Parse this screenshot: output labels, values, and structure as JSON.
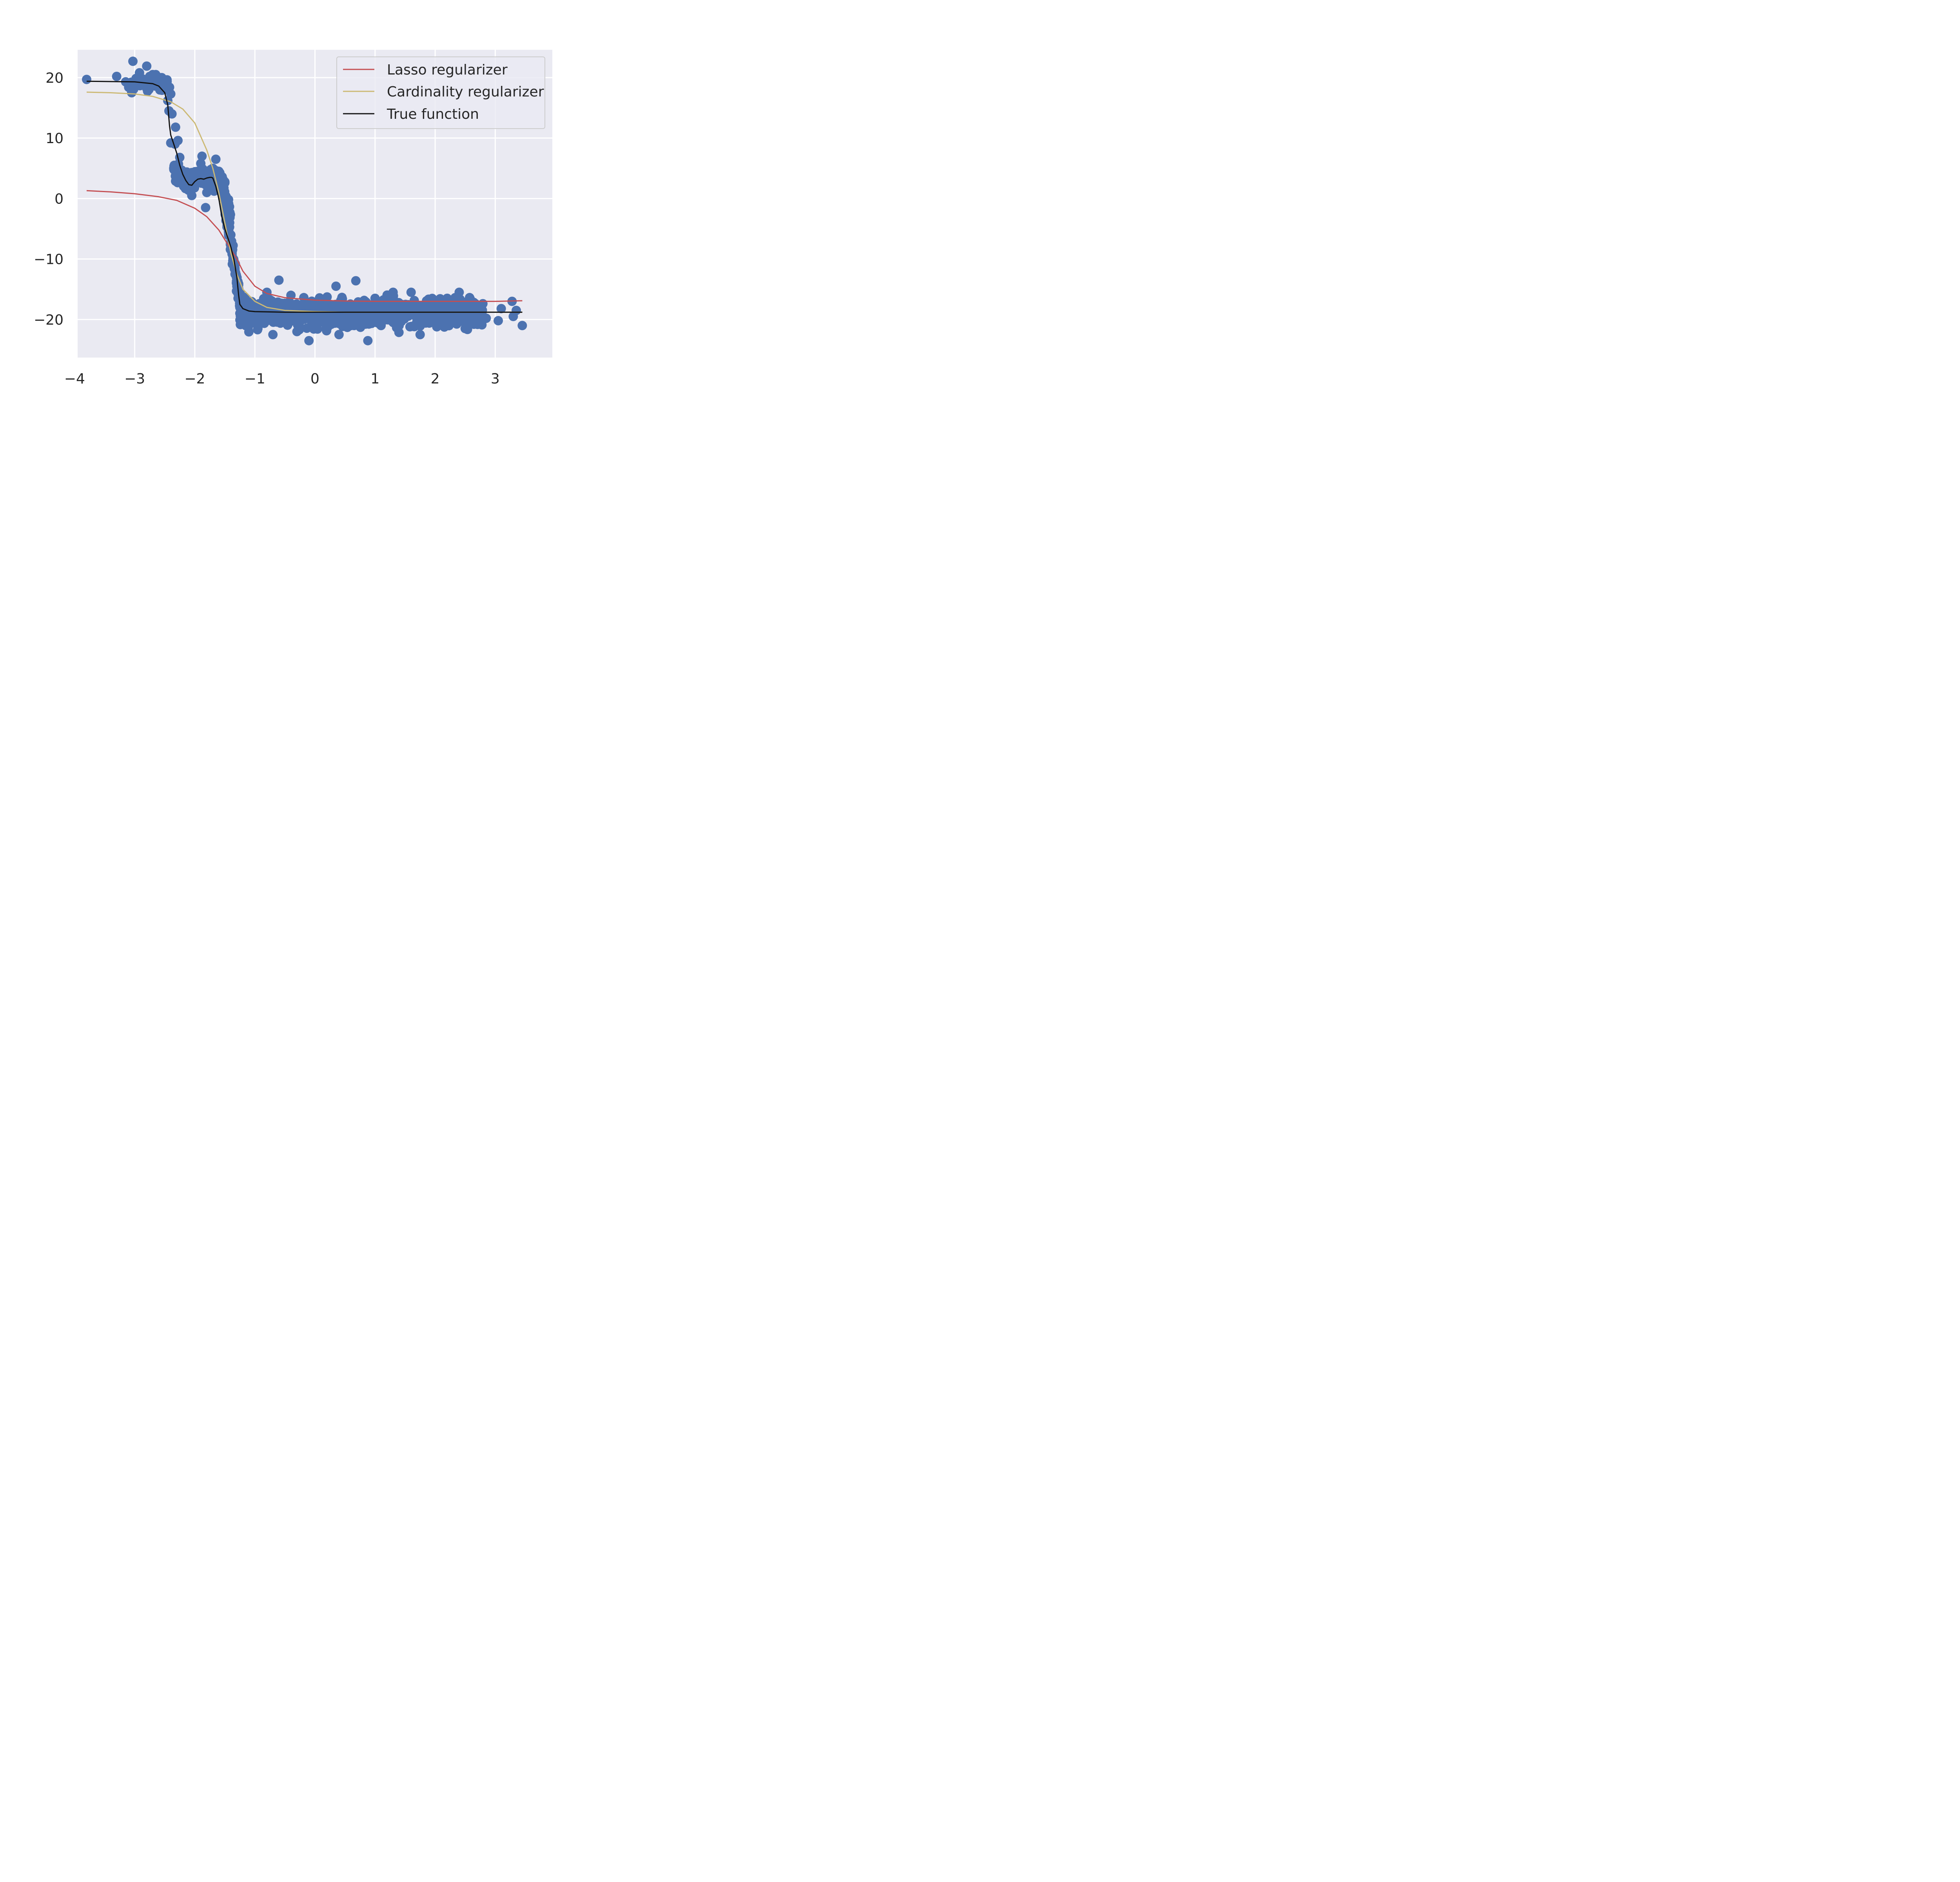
{
  "chart_data": {
    "type": "scatter",
    "title": "",
    "xlabel": "",
    "ylabel": "",
    "xlim": [
      -3.95,
      3.95
    ],
    "ylim": [
      -26.3,
      24.6
    ],
    "xticks": [
      -4,
      -3,
      -2,
      -1,
      0,
      1,
      2,
      3
    ],
    "xtick_labels": [
      "−4",
      "−3",
      "−2",
      "−1",
      "0",
      "1",
      "2",
      "3"
    ],
    "yticks": [
      -20,
      -10,
      0,
      10,
      20
    ],
    "ytick_labels": [
      "−20",
      "−10",
      "0",
      "10",
      "20"
    ],
    "grid": true,
    "legend_position": "top-right",
    "colors": {
      "background": "#EAEAF2",
      "grid": "#FFFFFF",
      "points": "#4C72B0",
      "lasso": "#C44E52",
      "cardinality": "#CCB974",
      "true": "#111111",
      "text": "#262626"
    },
    "scatter_points": [
      [
        -3.8,
        19.7
      ],
      [
        -3.3,
        20.2
      ],
      [
        -3.15,
        19.3
      ],
      [
        -3.03,
        22.7
      ],
      [
        -3.05,
        17.5
      ],
      [
        -3.1,
        18.4
      ],
      [
        -2.98,
        19.6
      ],
      [
        -2.92,
        20.8
      ],
      [
        -2.85,
        19.3
      ],
      [
        -2.8,
        21.9
      ],
      [
        -2.75,
        20.2
      ],
      [
        -2.7,
        20.5
      ],
      [
        -2.65,
        20.5
      ],
      [
        -2.62,
        19.0
      ],
      [
        -2.58,
        18.5
      ],
      [
        -2.55,
        20.0
      ],
      [
        -2.48,
        19.5
      ],
      [
        -2.42,
        18.4
      ],
      [
        -2.4,
        17.3
      ],
      [
        -2.45,
        16.2
      ],
      [
        -2.43,
        14.5
      ],
      [
        -2.38,
        14.0
      ],
      [
        -2.32,
        11.8
      ],
      [
        -2.4,
        9.2
      ],
      [
        -2.33,
        9.0
      ],
      [
        -2.28,
        9.6
      ],
      [
        -2.25,
        6.8
      ],
      [
        -2.35,
        5.0
      ],
      [
        -2.2,
        4.5
      ],
      [
        -2.15,
        3.5
      ],
      [
        -2.1,
        2.0
      ],
      [
        -2.05,
        0.5
      ],
      [
        -2.0,
        3.0
      ],
      [
        -1.95,
        4.5
      ],
      [
        -1.9,
        5.8
      ],
      [
        -1.88,
        7.0
      ],
      [
        -1.85,
        3.5
      ],
      [
        -1.8,
        1.0
      ],
      [
        -1.82,
        -1.5
      ],
      [
        -1.75,
        4.0
      ],
      [
        -1.7,
        5.0
      ],
      [
        -1.65,
        6.5
      ],
      [
        -1.6,
        4.5
      ],
      [
        -1.55,
        2.0
      ],
      [
        -1.5,
        0.0
      ],
      [
        -1.47,
        -2.5
      ],
      [
        -1.42,
        -4.0
      ],
      [
        -1.4,
        -6.0
      ],
      [
        -1.38,
        -8.0
      ],
      [
        -1.35,
        -10.5
      ],
      [
        -1.33,
        -12.5
      ],
      [
        -1.3,
        -14.5
      ],
      [
        -1.28,
        -16.5
      ],
      [
        -1.25,
        -18.0
      ],
      [
        -1.2,
        -20.0
      ],
      [
        -1.15,
        -21.0
      ],
      [
        -1.05,
        -20.5
      ],
      [
        -0.95,
        -21.5
      ],
      [
        -0.85,
        -19.5
      ],
      [
        -0.8,
        -15.5
      ],
      [
        -0.7,
        -22.5
      ],
      [
        -0.6,
        -13.5
      ],
      [
        -0.5,
        -20.5
      ],
      [
        -0.4,
        -16.0
      ],
      [
        -0.3,
        -22.0
      ],
      [
        -0.1,
        -23.5
      ],
      [
        0.0,
        -20.0
      ],
      [
        0.1,
        -17.0
      ],
      [
        0.2,
        -20.5
      ],
      [
        0.35,
        -14.5
      ],
      [
        0.4,
        -22.5
      ],
      [
        0.5,
        -18.0
      ],
      [
        0.6,
        -21.0
      ],
      [
        0.68,
        -13.6
      ],
      [
        0.8,
        -20.0
      ],
      [
        0.88,
        -23.5
      ],
      [
        1.0,
        -16.5
      ],
      [
        1.1,
        -21.0
      ],
      [
        1.2,
        -19.0
      ],
      [
        1.3,
        -15.5
      ],
      [
        1.4,
        -21.0
      ],
      [
        1.5,
        -19.5
      ],
      [
        1.6,
        -15.5
      ],
      [
        1.75,
        -22.5
      ],
      [
        1.85,
        -17.5
      ],
      [
        2.0,
        -20.5
      ],
      [
        2.1,
        -18.5
      ],
      [
        2.2,
        -16.5
      ],
      [
        2.3,
        -19.5
      ],
      [
        2.4,
        -15.5
      ],
      [
        2.5,
        -21.5
      ],
      [
        2.58,
        -17.8
      ],
      [
        2.7,
        -20.5
      ],
      [
        2.85,
        -19.8
      ],
      [
        3.05,
        -20.2
      ],
      [
        3.1,
        -18.2
      ],
      [
        3.28,
        -17.0
      ],
      [
        3.3,
        -19.5
      ],
      [
        3.35,
        -18.5
      ],
      [
        3.45,
        -21.0
      ]
    ],
    "dense_band": {
      "x_range": [
        -1.25,
        2.8
      ],
      "y_center": -19.0,
      "y_spread": 2.8,
      "upper_y_edge": -15.5,
      "lower_y_edge": -22.5
    },
    "series": [
      {
        "name": "Lasso regularizer",
        "x": [
          -3.8,
          -3.4,
          -3.0,
          -2.6,
          -2.3,
          -2.0,
          -1.8,
          -1.6,
          -1.5,
          -1.4,
          -1.3,
          -1.2,
          -1.0,
          -0.8,
          -0.5,
          0.0,
          0.5,
          1.0,
          1.5,
          2.0,
          2.5,
          3.0,
          3.45
        ],
        "y": [
          1.3,
          1.1,
          0.8,
          0.3,
          -0.3,
          -1.6,
          -3.0,
          -5.2,
          -6.8,
          -8.4,
          -10.0,
          -12.0,
          -14.5,
          -15.7,
          -16.4,
          -16.8,
          -16.95,
          -17.0,
          -17.0,
          -17.0,
          -17.0,
          -17.0,
          -16.9
        ]
      },
      {
        "name": "Cardinality regularizer",
        "x": [
          -3.8,
          -3.4,
          -3.0,
          -2.7,
          -2.4,
          -2.2,
          -2.0,
          -1.8,
          -1.7,
          -1.6,
          -1.5,
          -1.4,
          -1.3,
          -1.2,
          -1.0,
          -0.8,
          -0.5,
          0.0,
          0.5,
          1.0,
          2.0,
          3.0,
          3.45
        ],
        "y": [
          17.6,
          17.5,
          17.3,
          16.9,
          16.0,
          14.8,
          12.5,
          8.0,
          5.0,
          1.0,
          -4.0,
          -9.0,
          -12.5,
          -15.0,
          -17.0,
          -18.0,
          -18.5,
          -18.7,
          -18.8,
          -18.8,
          -18.8,
          -18.8,
          -18.8
        ]
      },
      {
        "name": "True function",
        "x": [
          -3.8,
          -3.4,
          -3.0,
          -2.7,
          -2.6,
          -2.5,
          -2.45,
          -2.42,
          -2.4,
          -2.35,
          -2.3,
          -2.25,
          -2.2,
          -2.15,
          -2.1,
          -2.05,
          -2.0,
          -1.95,
          -1.9,
          -1.85,
          -1.8,
          -1.75,
          -1.72,
          -1.7,
          -1.65,
          -1.6,
          -1.55,
          -1.5,
          -1.45,
          -1.4,
          -1.35,
          -1.3,
          -1.27,
          -1.25,
          -1.2,
          -1.1,
          -1.0,
          -0.5,
          0.0,
          1.0,
          2.0,
          3.0,
          3.45
        ],
        "y": [
          19.4,
          19.35,
          19.3,
          19.0,
          18.6,
          17.5,
          15.5,
          12.0,
          10.5,
          9.0,
          7.5,
          5.5,
          4.0,
          3.0,
          2.3,
          2.2,
          2.8,
          3.2,
          3.3,
          3.2,
          3.4,
          3.5,
          3.5,
          3.4,
          2.0,
          0.0,
          -3.0,
          -5.0,
          -6.5,
          -8.0,
          -10.0,
          -13.0,
          -16.0,
          -17.5,
          -18.2,
          -18.6,
          -18.7,
          -18.8,
          -18.8,
          -18.8,
          -18.8,
          -18.8,
          -18.8
        ]
      }
    ],
    "legend": [
      "Lasso regularizer",
      "Cardinality regularizer",
      "True function"
    ]
  }
}
